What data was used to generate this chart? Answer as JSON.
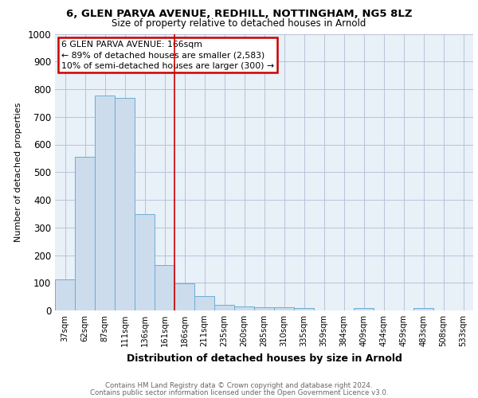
{
  "title1": "6, GLEN PARVA AVENUE, REDHILL, NOTTINGHAM, NG5 8LZ",
  "title2": "Size of property relative to detached houses in Arnold",
  "xlabel": "Distribution of detached houses by size in Arnold",
  "ylabel": "Number of detached properties",
  "categories": [
    "37sqm",
    "62sqm",
    "87sqm",
    "111sqm",
    "136sqm",
    "161sqm",
    "186sqm",
    "211sqm",
    "235sqm",
    "260sqm",
    "285sqm",
    "310sqm",
    "335sqm",
    "359sqm",
    "384sqm",
    "409sqm",
    "434sqm",
    "459sqm",
    "483sqm",
    "508sqm",
    "533sqm"
  ],
  "values": [
    113,
    555,
    778,
    768,
    348,
    163,
    97,
    53,
    20,
    13,
    11,
    11,
    8,
    0,
    0,
    9,
    0,
    0,
    10,
    0,
    0
  ],
  "bar_color": "#ccdcec",
  "bar_edge_color": "#6baed6",
  "vline_x": 5.5,
  "vline_color": "#cc0000",
  "annotation_text": "6 GLEN PARVA AVENUE: 166sqm\n← 89% of detached houses are smaller (2,583)\n10% of semi-detached houses are larger (300) →",
  "annotation_box_color": "#ffffff",
  "annotation_box_edge": "#cc0000",
  "ylim": [
    0,
    1000
  ],
  "yticks": [
    0,
    100,
    200,
    300,
    400,
    500,
    600,
    700,
    800,
    900,
    1000
  ],
  "footnote1": "Contains HM Land Registry data © Crown copyright and database right 2024.",
  "footnote2": "Contains public sector information licensed under the Open Government Licence v3.0.",
  "plot_bg_color": "#e8f0f8",
  "grid_color": "#b0bcd4"
}
